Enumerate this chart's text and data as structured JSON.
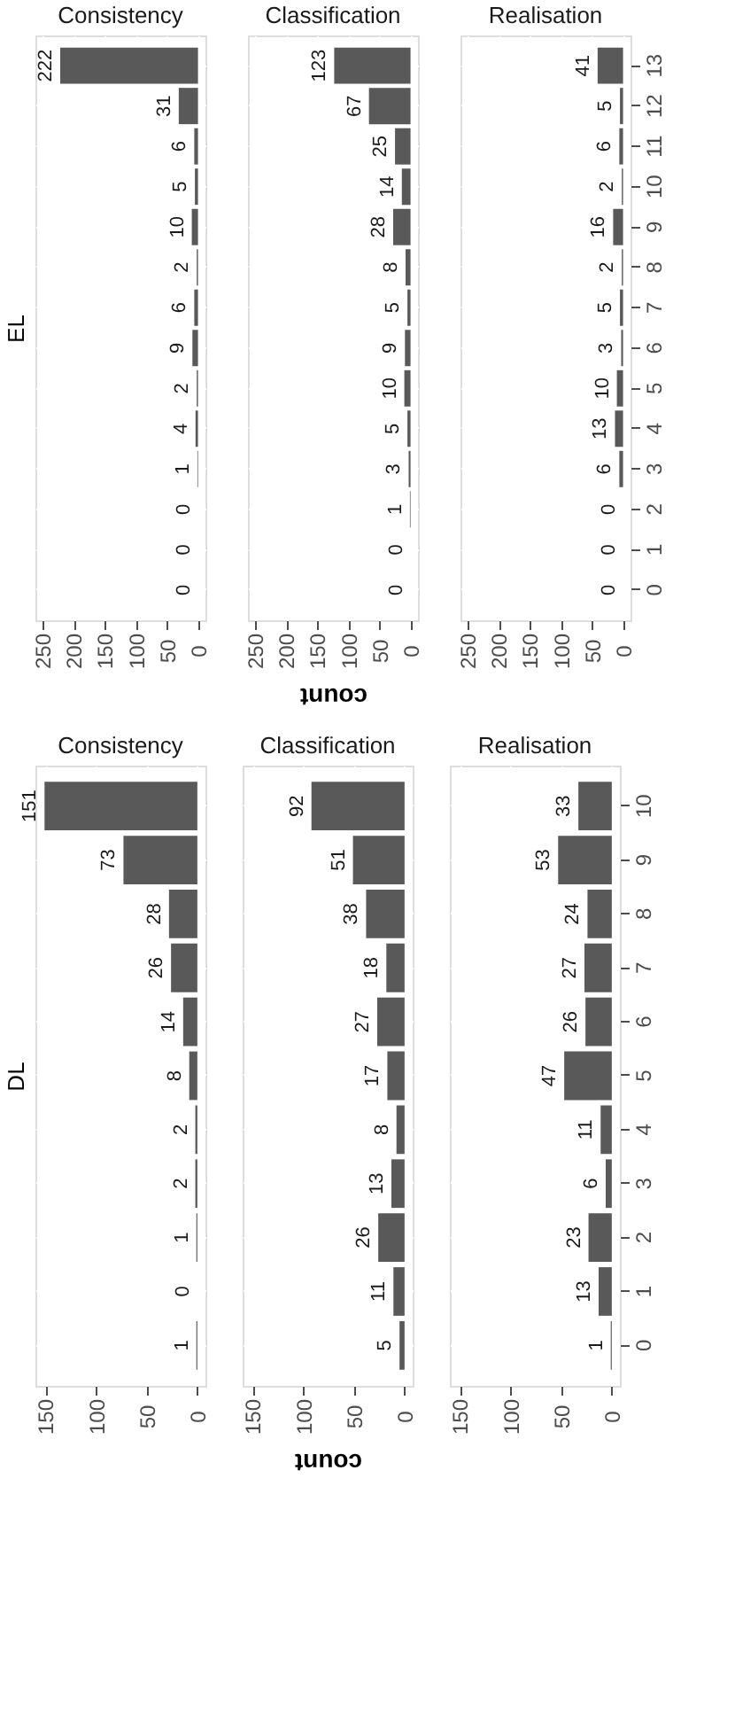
{
  "chart_data": [
    {
      "type": "bar",
      "orientation": "horizontal",
      "title": "Consistency",
      "ylabel": "EL",
      "categories": [
        "13",
        "12",
        "11",
        "10",
        "9",
        "8",
        "7",
        "6",
        "5",
        "4",
        "3",
        "2",
        "1",
        "0"
      ],
      "values": [
        222,
        31,
        6,
        5,
        10,
        2,
        6,
        9,
        2,
        4,
        1,
        0,
        0,
        0
      ],
      "color": "#595959",
      "xlim": [
        262,
        -12
      ],
      "xticks": [
        250,
        200,
        150,
        100,
        50,
        0
      ],
      "grid": true,
      "data_labels": true,
      "tick_labels": "x"
    },
    {
      "type": "bar",
      "orientation": "horizontal",
      "title": "Classification",
      "xlabel": "count",
      "categories": [
        "13",
        "12",
        "11",
        "10",
        "9",
        "8",
        "7",
        "6",
        "5",
        "4",
        "3",
        "2",
        "1",
        "0"
      ],
      "values": [
        123,
        67,
        25,
        14,
        28,
        8,
        5,
        9,
        10,
        5,
        3,
        1,
        0,
        0
      ],
      "color": "#595959",
      "xlim": [
        262,
        -12
      ],
      "xticks": [
        250,
        200,
        150,
        100,
        50,
        0
      ],
      "grid": true,
      "data_labels": true,
      "tick_labels": "x"
    },
    {
      "type": "bar",
      "orientation": "horizontal",
      "title": "Realisation",
      "categories": [
        "13",
        "12",
        "11",
        "10",
        "9",
        "8",
        "7",
        "6",
        "5",
        "4",
        "3",
        "2",
        "1",
        "0"
      ],
      "values": [
        41,
        5,
        6,
        2,
        16,
        2,
        5,
        3,
        10,
        13,
        6,
        0,
        0,
        0
      ],
      "color": "#595959",
      "xlim": [
        262,
        -12
      ],
      "xticks": [
        250,
        200,
        150,
        100,
        50,
        0
      ],
      "grid": true,
      "data_labels": true
    },
    {
      "type": "bar",
      "orientation": "horizontal",
      "title": "Consistency",
      "ylabel": "DL",
      "categories": [
        "10",
        "9",
        "8",
        "7",
        "6",
        "5",
        "4",
        "3",
        "2",
        "1",
        "0"
      ],
      "values": [
        151,
        73,
        28,
        26,
        14,
        8,
        2,
        2,
        1,
        0,
        1
      ],
      "color": "#595959",
      "xlim": [
        160,
        -8
      ],
      "xticks": [
        150,
        100,
        50,
        0
      ],
      "grid": true,
      "data_labels": true,
      "tick_labels": "x"
    },
    {
      "type": "bar",
      "orientation": "horizontal",
      "title": "Classification",
      "xlabel": "count",
      "categories": [
        "10",
        "9",
        "8",
        "7",
        "6",
        "5",
        "4",
        "3",
        "2",
        "1",
        "0"
      ],
      "values": [
        92,
        51,
        38,
        18,
        27,
        17,
        8,
        13,
        26,
        11,
        5
      ],
      "color": "#595959",
      "xlim": [
        160,
        -8
      ],
      "xticks": [
        150,
        100,
        50,
        0
      ],
      "grid": true,
      "data_labels": true,
      "tick_labels": "x"
    },
    {
      "type": "bar",
      "orientation": "horizontal",
      "title": "Realisation",
      "categories": [
        "10",
        "9",
        "8",
        "7",
        "6",
        "5",
        "4",
        "3",
        "2",
        "1",
        "0"
      ],
      "values": [
        33,
        53,
        24,
        27,
        26,
        47,
        11,
        6,
        23,
        13,
        1
      ],
      "color": "#595959",
      "xlim": [
        160,
        -8
      ],
      "xticks": [
        150,
        100,
        50,
        0
      ],
      "grid": true,
      "data_labels": true
    }
  ]
}
